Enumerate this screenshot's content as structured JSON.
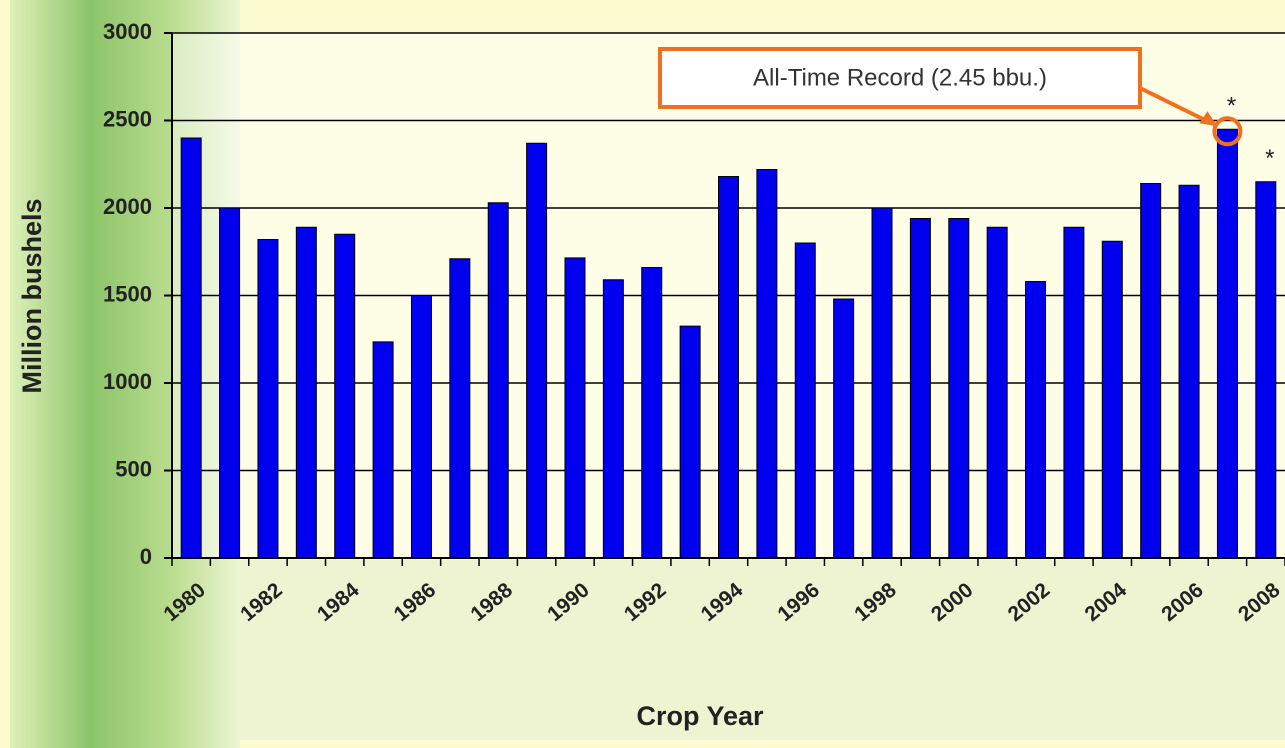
{
  "chart_data": {
    "type": "bar",
    "x_label": "Crop Year",
    "y_label": "Million bushels",
    "categories": [
      "1980",
      null,
      "1982",
      null,
      "1984",
      null,
      "1986",
      null,
      "1988",
      null,
      "1990",
      null,
      "1992",
      null,
      "1994",
      null,
      "1996",
      null,
      "1998",
      null,
      "2000",
      null,
      "2002",
      null,
      "2004",
      null,
      "2006",
      null,
      "2008"
    ],
    "values": [
      2400,
      2000,
      1820,
      1890,
      1850,
      1235,
      1500,
      1710,
      2030,
      2370,
      1715,
      1590,
      1660,
      1325,
      2180,
      2220,
      1800,
      1480,
      2000,
      1940,
      1940,
      1890,
      1580,
      1890,
      1810,
      2140,
      2130,
      2450,
      2150
    ],
    "color": "#0000ee",
    "ylim": [
      0,
      3000
    ],
    "yticks": [
      0,
      500,
      1000,
      1500,
      2000,
      2500,
      3000
    ],
    "grid": true,
    "annotation": "All-Time Record (2.45 bbu.)",
    "markers": [
      "*",
      "*"
    ]
  }
}
